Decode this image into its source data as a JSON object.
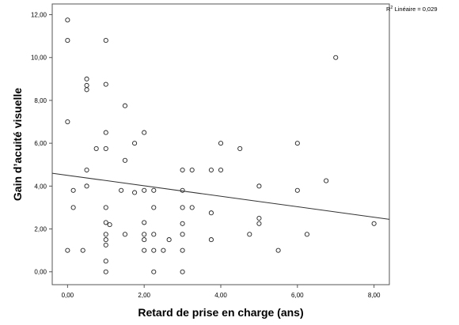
{
  "chart_data": {
    "type": "scatter",
    "title": "",
    "xlabel": "Retard de prise en charge (ans)",
    "ylabel": "Gain d’acuité visuelle",
    "xlim": [
      -0.4,
      8.4
    ],
    "ylim": [
      -0.6,
      12.5
    ],
    "x_ticks": [
      0,
      2,
      4,
      6,
      8
    ],
    "x_tick_labels": [
      "0,00",
      "2,00",
      "4,00",
      "6,00",
      "8,00"
    ],
    "y_ticks": [
      0,
      2,
      4,
      6,
      8,
      10,
      12
    ],
    "y_tick_labels": [
      "0,00",
      "2,00",
      "4,00",
      "6,00",
      "8,00",
      "10,00",
      "12,00"
    ],
    "grid": false,
    "annotation": {
      "prefix": "R",
      "sup": "2",
      "text": " Linéaire = 0,029"
    },
    "fit_line": {
      "x": [
        -0.4,
        8.4
      ],
      "y": [
        4.6,
        2.45
      ]
    },
    "points": [
      {
        "x": 0,
        "y": 11.75
      },
      {
        "x": 0,
        "y": 10.8
      },
      {
        "x": 1,
        "y": 10.8
      },
      {
        "x": 0,
        "y": 7
      },
      {
        "x": 0,
        "y": 1
      },
      {
        "x": 0.15,
        "y": 3.8
      },
      {
        "x": 0.15,
        "y": 3
      },
      {
        "x": 0.4,
        "y": 1
      },
      {
        "x": 0.5,
        "y": 9
      },
      {
        "x": 0.5,
        "y": 8.7
      },
      {
        "x": 0.5,
        "y": 8.5
      },
      {
        "x": 0.5,
        "y": 4.75
      },
      {
        "x": 0.5,
        "y": 4
      },
      {
        "x": 0.75,
        "y": 5.75
      },
      {
        "x": 1,
        "y": 8.75
      },
      {
        "x": 1,
        "y": 6.5
      },
      {
        "x": 1,
        "y": 5.75
      },
      {
        "x": 1,
        "y": 3
      },
      {
        "x": 1,
        "y": 2.3
      },
      {
        "x": 1,
        "y": 1.75
      },
      {
        "x": 1,
        "y": 1.5
      },
      {
        "x": 1,
        "y": 1.25
      },
      {
        "x": 1,
        "y": 0.5
      },
      {
        "x": 1,
        "y": 0
      },
      {
        "x": 1.1,
        "y": 2.2
      },
      {
        "x": 1.5,
        "y": 7.75
      },
      {
        "x": 1.5,
        "y": 5.2
      },
      {
        "x": 1.4,
        "y": 3.8
      },
      {
        "x": 1.5,
        "y": 1.75
      },
      {
        "x": 1.75,
        "y": 6
      },
      {
        "x": 1.75,
        "y": 3.7
      },
      {
        "x": 2,
        "y": 6.5
      },
      {
        "x": 2,
        "y": 3.8
      },
      {
        "x": 2,
        "y": 2.3
      },
      {
        "x": 2,
        "y": 1.75
      },
      {
        "x": 2,
        "y": 1.5
      },
      {
        "x": 2,
        "y": 1
      },
      {
        "x": 2.25,
        "y": 3.8
      },
      {
        "x": 2.25,
        "y": 3
      },
      {
        "x": 2.25,
        "y": 1.75
      },
      {
        "x": 2.25,
        "y": 1
      },
      {
        "x": 2.25,
        "y": 0
      },
      {
        "x": 2.5,
        "y": 1
      },
      {
        "x": 2.65,
        "y": 1.5
      },
      {
        "x": 3,
        "y": 4.75
      },
      {
        "x": 3,
        "y": 3.8
      },
      {
        "x": 3,
        "y": 3
      },
      {
        "x": 3,
        "y": 2.25
      },
      {
        "x": 3,
        "y": 1.75
      },
      {
        "x": 3,
        "y": 1
      },
      {
        "x": 3,
        "y": 0
      },
      {
        "x": 3.25,
        "y": 4.75
      },
      {
        "x": 3.25,
        "y": 3
      },
      {
        "x": 3.75,
        "y": 4.75
      },
      {
        "x": 3.75,
        "y": 2.75
      },
      {
        "x": 3.75,
        "y": 1.5
      },
      {
        "x": 4,
        "y": 6
      },
      {
        "x": 4,
        "y": 4.75
      },
      {
        "x": 4.5,
        "y": 5.75
      },
      {
        "x": 4.75,
        "y": 1.75
      },
      {
        "x": 5,
        "y": 4
      },
      {
        "x": 5,
        "y": 2.5
      },
      {
        "x": 5,
        "y": 2.25
      },
      {
        "x": 5.5,
        "y": 1
      },
      {
        "x": 6,
        "y": 6
      },
      {
        "x": 6,
        "y": 3.8
      },
      {
        "x": 6.25,
        "y": 1.75
      },
      {
        "x": 6.75,
        "y": 4.25
      },
      {
        "x": 7,
        "y": 10
      },
      {
        "x": 8,
        "y": 2.25
      }
    ]
  }
}
